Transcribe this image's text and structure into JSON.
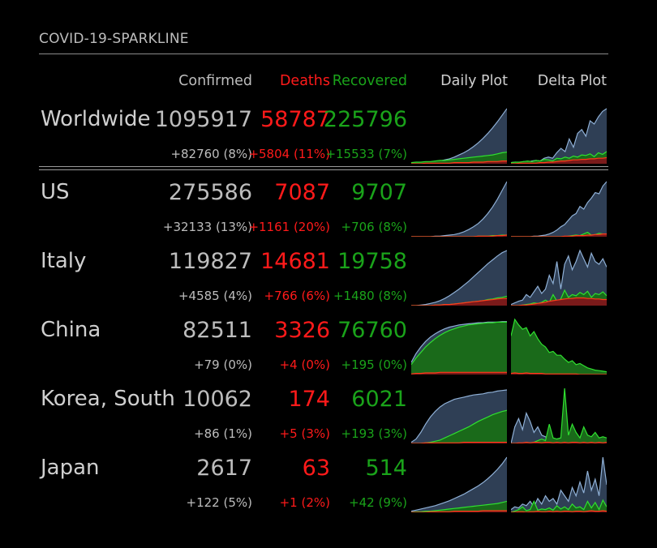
{
  "module": {
    "title": "COVID-19-SPARKLINE"
  },
  "headers": {
    "confirmed": "Confirmed",
    "deaths": "Deaths",
    "recovered": "Recovered",
    "daily": "Daily Plot",
    "delta": "Delta Plot"
  },
  "colors": {
    "confirmed": "#bdbdbd",
    "deaths": "#ff1a1a",
    "recovered": "#1aa31a",
    "conf_fill": "#2f3f55",
    "conf_line": "#8fb0d6",
    "rec_fill": "#1a6a1a",
    "rec_line": "#2fe02f",
    "death_fill": "#7a1a1a",
    "death_line": "#ff3a1a"
  },
  "rows": [
    {
      "name": "Worldwide",
      "confirmed": "1095917",
      "deaths": "58787",
      "recovered": "225796",
      "d_confirmed": "+82760 (8%)",
      "d_deaths": "+5804 (11%)",
      "d_recovered": "+15533 (7%)",
      "daily": {
        "confirmed": [
          0.01,
          0.01,
          0.02,
          0.02,
          0.03,
          0.04,
          0.05,
          0.07,
          0.09,
          0.12,
          0.16,
          0.2,
          0.25,
          0.31,
          0.38,
          0.46,
          0.55,
          0.65,
          0.76,
          0.88,
          1.0
        ],
        "recovered": [
          0.02,
          0.03,
          0.03,
          0.04,
          0.04,
          0.05,
          0.06,
          0.06,
          0.07,
          0.08,
          0.09,
          0.1,
          0.11,
          0.12,
          0.13,
          0.14,
          0.15,
          0.16,
          0.18,
          0.2,
          0.21
        ],
        "deaths": [
          0.0,
          0.0,
          0.0,
          0.01,
          0.01,
          0.01,
          0.01,
          0.01,
          0.01,
          0.02,
          0.02,
          0.02,
          0.02,
          0.03,
          0.03,
          0.03,
          0.04,
          0.04,
          0.04,
          0.05,
          0.05
        ]
      },
      "delta": {
        "confirmed": [
          0.02,
          0.03,
          0.02,
          0.04,
          0.03,
          0.05,
          0.06,
          0.05,
          0.1,
          0.12,
          0.1,
          0.2,
          0.28,
          0.22,
          0.45,
          0.3,
          0.55,
          0.62,
          0.5,
          0.78,
          0.72,
          0.85,
          0.95,
          1.0
        ],
        "recovered": [
          0.02,
          0.03,
          0.03,
          0.04,
          0.05,
          0.04,
          0.06,
          0.05,
          0.08,
          0.07,
          0.05,
          0.1,
          0.09,
          0.12,
          0.1,
          0.14,
          0.12,
          0.16,
          0.15,
          0.18,
          0.13,
          0.2,
          0.17,
          0.22
        ],
        "deaths": [
          0.0,
          0.0,
          0.01,
          0.01,
          0.01,
          0.01,
          0.01,
          0.02,
          0.02,
          0.03,
          0.03,
          0.04,
          0.05,
          0.05,
          0.06,
          0.07,
          0.07,
          0.08,
          0.08,
          0.09,
          0.09,
          0.1,
          0.1,
          0.11
        ]
      }
    },
    {
      "name": "US",
      "confirmed": "275586",
      "deaths": "7087",
      "recovered": "9707",
      "d_confirmed": "+32133 (13%)",
      "d_deaths": "+1161 (20%)",
      "d_recovered": "+706 (8%)",
      "daily": {
        "confirmed": [
          0.0,
          0.0,
          0.0,
          0.0,
          0.0,
          0.01,
          0.01,
          0.02,
          0.03,
          0.04,
          0.06,
          0.09,
          0.13,
          0.18,
          0.24,
          0.32,
          0.42,
          0.54,
          0.68,
          0.84,
          1.0
        ],
        "recovered": [
          0.0,
          0.0,
          0.0,
          0.0,
          0.0,
          0.0,
          0.0,
          0.0,
          0.0,
          0.0,
          0.0,
          0.0,
          0.0,
          0.0,
          0.01,
          0.01,
          0.01,
          0.02,
          0.02,
          0.03,
          0.03
        ],
        "deaths": [
          0.0,
          0.0,
          0.0,
          0.0,
          0.0,
          0.0,
          0.0,
          0.0,
          0.0,
          0.0,
          0.0,
          0.0,
          0.0,
          0.0,
          0.01,
          0.01,
          0.01,
          0.01,
          0.02,
          0.02,
          0.03
        ]
      },
      "delta": {
        "confirmed": [
          0.0,
          0.0,
          0.0,
          0.0,
          0.0,
          0.0,
          0.01,
          0.01,
          0.02,
          0.03,
          0.05,
          0.08,
          0.12,
          0.18,
          0.22,
          0.3,
          0.38,
          0.42,
          0.55,
          0.5,
          0.62,
          0.7,
          0.8,
          0.78,
          0.92,
          1.0
        ],
        "recovered": [
          0.0,
          0.0,
          0.0,
          0.0,
          0.0,
          0.0,
          0.0,
          0.0,
          0.0,
          0.0,
          0.0,
          0.0,
          0.0,
          0.0,
          0.0,
          0.01,
          0.02,
          0.03,
          0.02,
          0.05,
          0.08,
          0.03,
          0.04,
          0.06,
          0.05,
          0.04
        ],
        "deaths": [
          0.0,
          0.0,
          0.0,
          0.0,
          0.0,
          0.0,
          0.0,
          0.0,
          0.0,
          0.0,
          0.0,
          0.0,
          0.0,
          0.0,
          0.01,
          0.01,
          0.01,
          0.02,
          0.02,
          0.02,
          0.03,
          0.03,
          0.04,
          0.04,
          0.05,
          0.05
        ]
      }
    },
    {
      "name": "Italy",
      "confirmed": "119827",
      "deaths": "14681",
      "recovered": "19758",
      "d_confirmed": "+4585 (4%)",
      "d_deaths": "+766 (6%)",
      "d_recovered": "+1480 (8%)",
      "daily": {
        "confirmed": [
          0.0,
          0.0,
          0.01,
          0.02,
          0.04,
          0.06,
          0.09,
          0.13,
          0.18,
          0.24,
          0.3,
          0.37,
          0.44,
          0.52,
          0.6,
          0.68,
          0.76,
          0.83,
          0.9,
          0.96,
          1.0
        ],
        "recovered": [
          0.0,
          0.0,
          0.0,
          0.0,
          0.0,
          0.01,
          0.01,
          0.02,
          0.02,
          0.03,
          0.04,
          0.05,
          0.06,
          0.07,
          0.08,
          0.09,
          0.11,
          0.12,
          0.14,
          0.15,
          0.17
        ],
        "deaths": [
          0.0,
          0.0,
          0.0,
          0.0,
          0.0,
          0.01,
          0.01,
          0.02,
          0.02,
          0.03,
          0.04,
          0.05,
          0.06,
          0.07,
          0.08,
          0.09,
          0.1,
          0.11,
          0.12,
          0.13,
          0.13
        ]
      },
      "delta": {
        "confirmed": [
          0.02,
          0.05,
          0.08,
          0.1,
          0.2,
          0.15,
          0.25,
          0.35,
          0.22,
          0.3,
          0.55,
          0.4,
          0.8,
          0.3,
          0.75,
          0.9,
          0.65,
          0.8,
          1.0,
          0.85,
          0.7,
          0.95,
          0.8,
          0.75,
          0.85,
          0.7
        ],
        "recovered": [
          0.0,
          0.0,
          0.0,
          0.01,
          0.02,
          0.03,
          0.05,
          0.04,
          0.06,
          0.1,
          0.06,
          0.2,
          0.08,
          0.12,
          0.28,
          0.15,
          0.2,
          0.18,
          0.24,
          0.2,
          0.26,
          0.15,
          0.22,
          0.2,
          0.25,
          0.18
        ],
        "deaths": [
          0.0,
          0.0,
          0.0,
          0.01,
          0.01,
          0.02,
          0.03,
          0.04,
          0.05,
          0.06,
          0.08,
          0.09,
          0.1,
          0.11,
          0.12,
          0.13,
          0.13,
          0.14,
          0.14,
          0.14,
          0.13,
          0.13,
          0.12,
          0.12,
          0.11,
          0.11
        ]
      }
    },
    {
      "name": "China",
      "confirmed": "82511",
      "deaths": "3326",
      "recovered": "76760",
      "d_confirmed": "+79 (0%)",
      "d_deaths": "+4 (0%)",
      "d_recovered": "+195 (0%)",
      "daily": {
        "confirmed": [
          0.22,
          0.38,
          0.5,
          0.6,
          0.68,
          0.74,
          0.79,
          0.83,
          0.86,
          0.88,
          0.9,
          0.91,
          0.92,
          0.93,
          0.94,
          0.94,
          0.95,
          0.95,
          0.95,
          0.96,
          0.96
        ],
        "recovered": [
          0.18,
          0.3,
          0.4,
          0.5,
          0.58,
          0.65,
          0.71,
          0.76,
          0.8,
          0.83,
          0.86,
          0.88,
          0.9,
          0.91,
          0.92,
          0.93,
          0.94,
          0.94,
          0.95,
          0.95,
          0.95
        ],
        "deaths": [
          0.01,
          0.02,
          0.02,
          0.03,
          0.03,
          0.03,
          0.04,
          0.04,
          0.04,
          0.04,
          0.04,
          0.04,
          0.04,
          0.04,
          0.04,
          0.04,
          0.04,
          0.04,
          0.04,
          0.04,
          0.04
        ]
      },
      "delta": {
        "confirmed": [
          0.2,
          0.18,
          0.15,
          0.12,
          0.25,
          0.22,
          0.18,
          0.2,
          0.15,
          0.12,
          0.1,
          0.08,
          0.1,
          0.08,
          0.07,
          0.06,
          0.05,
          0.06,
          0.04,
          0.04,
          0.05,
          0.04,
          0.03,
          0.03,
          0.03,
          0.03
        ],
        "recovered": [
          0.7,
          1.0,
          0.9,
          0.82,
          0.85,
          0.7,
          0.78,
          0.65,
          0.55,
          0.5,
          0.4,
          0.42,
          0.35,
          0.35,
          0.28,
          0.22,
          0.25,
          0.18,
          0.2,
          0.16,
          0.12,
          0.1,
          0.08,
          0.07,
          0.06,
          0.05
        ],
        "deaths": [
          0.02,
          0.03,
          0.02,
          0.02,
          0.03,
          0.02,
          0.02,
          0.02,
          0.02,
          0.01,
          0.01,
          0.01,
          0.01,
          0.01,
          0.01,
          0.01,
          0.01,
          0.01,
          0.0,
          0.0,
          0.0,
          0.0,
          0.0,
          0.0,
          0.0,
          0.0
        ]
      }
    },
    {
      "name": "Korea, South",
      "confirmed": "10062",
      "deaths": "174",
      "recovered": "6021",
      "d_confirmed": "+86 (1%)",
      "d_deaths": "+5 (3%)",
      "d_recovered": "+193 (3%)",
      "daily": {
        "confirmed": [
          0.02,
          0.08,
          0.2,
          0.35,
          0.48,
          0.58,
          0.66,
          0.72,
          0.76,
          0.8,
          0.82,
          0.84,
          0.86,
          0.88,
          0.89,
          0.9,
          0.92,
          0.93,
          0.95,
          0.96,
          0.97
        ],
        "recovered": [
          0.0,
          0.0,
          0.0,
          0.01,
          0.02,
          0.04,
          0.06,
          0.1,
          0.14,
          0.18,
          0.22,
          0.26,
          0.3,
          0.35,
          0.4,
          0.44,
          0.48,
          0.52,
          0.55,
          0.58,
          0.6
        ],
        "deaths": [
          0.0,
          0.0,
          0.0,
          0.01,
          0.01,
          0.01,
          0.01,
          0.01,
          0.01,
          0.01,
          0.01,
          0.02,
          0.02,
          0.02,
          0.02,
          0.02,
          0.02,
          0.02,
          0.02,
          0.02,
          0.02
        ]
      },
      "delta": {
        "confirmed": [
          0.0,
          0.3,
          0.45,
          0.25,
          0.55,
          0.4,
          0.2,
          0.3,
          0.15,
          0.12,
          0.1,
          0.08,
          0.08,
          0.1,
          0.12,
          0.08,
          0.1,
          0.12,
          0.1,
          0.08,
          0.1,
          0.12,
          0.08,
          0.1,
          0.08,
          0.1
        ],
        "recovered": [
          0.0,
          0.0,
          0.0,
          0.0,
          0.02,
          0.01,
          0.02,
          0.05,
          0.08,
          0.05,
          0.35,
          0.1,
          0.08,
          0.1,
          1.0,
          0.15,
          0.35,
          0.2,
          0.1,
          0.3,
          0.15,
          0.12,
          0.2,
          0.1,
          0.12,
          0.1
        ],
        "deaths": [
          0.0,
          0.0,
          0.01,
          0.01,
          0.02,
          0.01,
          0.02,
          0.02,
          0.01,
          0.02,
          0.02,
          0.01,
          0.02,
          0.01,
          0.02,
          0.01,
          0.02,
          0.02,
          0.01,
          0.02,
          0.01,
          0.02,
          0.01,
          0.02,
          0.01,
          0.02
        ]
      }
    },
    {
      "name": "Japan",
      "confirmed": "2617",
      "deaths": "63",
      "recovered": "514",
      "d_confirmed": "+122 (5%)",
      "d_deaths": "+1 (2%)",
      "d_recovered": "+42 (9%)",
      "daily": {
        "confirmed": [
          0.02,
          0.04,
          0.06,
          0.08,
          0.1,
          0.12,
          0.15,
          0.18,
          0.21,
          0.25,
          0.29,
          0.33,
          0.38,
          0.43,
          0.48,
          0.54,
          0.61,
          0.69,
          0.78,
          0.88,
          1.0
        ],
        "recovered": [
          0.0,
          0.01,
          0.01,
          0.02,
          0.02,
          0.03,
          0.04,
          0.05,
          0.06,
          0.07,
          0.08,
          0.09,
          0.1,
          0.11,
          0.12,
          0.13,
          0.14,
          0.15,
          0.16,
          0.18,
          0.2
        ],
        "deaths": [
          0.0,
          0.0,
          0.0,
          0.0,
          0.01,
          0.01,
          0.01,
          0.01,
          0.01,
          0.02,
          0.02,
          0.02,
          0.02,
          0.02,
          0.02,
          0.03,
          0.03,
          0.03,
          0.03,
          0.03,
          0.03
        ]
      },
      "delta": {
        "confirmed": [
          0.05,
          0.1,
          0.08,
          0.15,
          0.12,
          0.2,
          0.1,
          0.25,
          0.15,
          0.3,
          0.2,
          0.25,
          0.15,
          0.4,
          0.3,
          0.2,
          0.45,
          0.3,
          0.55,
          0.35,
          0.75,
          0.4,
          0.6,
          0.3,
          1.0,
          0.5
        ],
        "recovered": [
          0.0,
          0.02,
          0.05,
          0.1,
          0.03,
          0.05,
          0.2,
          0.04,
          0.06,
          0.05,
          0.08,
          0.04,
          0.12,
          0.06,
          0.1,
          0.05,
          0.15,
          0.08,
          0.1,
          0.05,
          0.2,
          0.08,
          0.18,
          0.05,
          0.22,
          0.1
        ],
        "deaths": [
          0.0,
          0.0,
          0.01,
          0.01,
          0.0,
          0.01,
          0.01,
          0.02,
          0.01,
          0.01,
          0.02,
          0.01,
          0.02,
          0.01,
          0.02,
          0.02,
          0.01,
          0.02,
          0.02,
          0.01,
          0.02,
          0.03,
          0.02,
          0.02,
          0.03,
          0.02
        ]
      }
    }
  ]
}
